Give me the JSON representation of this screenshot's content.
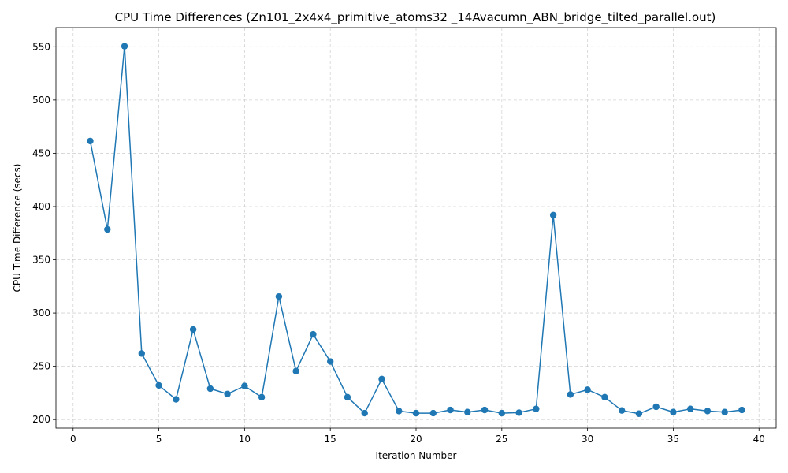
{
  "chart_data": {
    "type": "line",
    "title": "CPU Time Differences (Zn101_2x4x4_primitive_atoms32 _14Avacumn_ABN_bridge_tilted_parallel.out)",
    "xlabel": "Iteration Number",
    "ylabel": "CPU Time Difference (secs)",
    "xlim": [
      -1,
      41
    ],
    "ylim": [
      192,
      568
    ],
    "xticks": [
      0,
      5,
      10,
      15,
      20,
      25,
      30,
      35,
      40
    ],
    "yticks": [
      200,
      250,
      300,
      350,
      400,
      450,
      500,
      550
    ],
    "grid": true,
    "marker": "circle",
    "colors": {
      "series": "#1f77b4"
    },
    "x": [
      1,
      2,
      3,
      4,
      5,
      6,
      7,
      8,
      9,
      10,
      11,
      12,
      13,
      14,
      15,
      16,
      17,
      18,
      19,
      20,
      21,
      22,
      23,
      24,
      25,
      26,
      27,
      28,
      29,
      30,
      31,
      32,
      33,
      34,
      35,
      36,
      37,
      38,
      39
    ],
    "y": [
      461.5,
      378.5,
      550.5,
      262,
      232,
      219,
      284.5,
      229,
      224,
      231.5,
      221,
      315.5,
      245.5,
      280,
      254.5,
      221,
      206,
      238,
      208,
      206,
      206,
      209,
      207,
      209,
      206,
      206.5,
      210,
      392,
      223.5,
      228,
      221,
      208.5,
      205.5,
      212,
      207,
      210,
      208,
      207,
      209
    ]
  }
}
